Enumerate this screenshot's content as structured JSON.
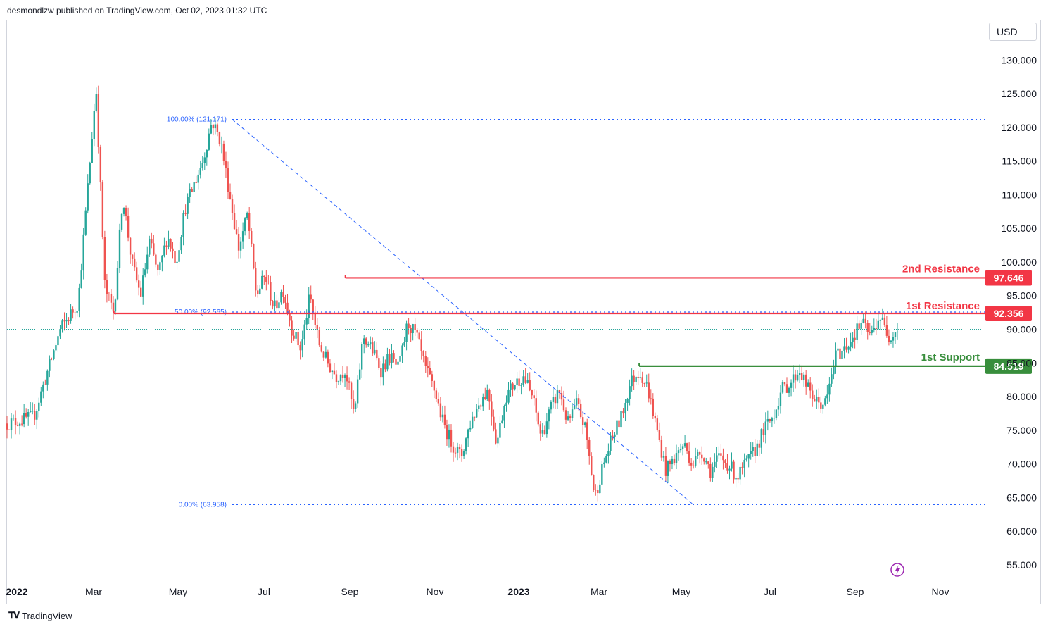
{
  "header": {
    "publisher": "desmondlzw published on TradingView.com, Oct 02, 2023 01:32 UTC",
    "currency": "USD"
  },
  "footer": {
    "logo_text": "TradingView"
  },
  "colors": {
    "up": "#26a69a",
    "down": "#ef5350",
    "resistance": "#f23645",
    "support": "#388e3c",
    "fib": "#2962ff"
  },
  "chart_data": {
    "type": "candlestick",
    "title": "",
    "ylim": [
      50,
      136
    ],
    "y_ticks": [
      "130.000",
      "125.000",
      "120.000",
      "115.000",
      "110.000",
      "105.000",
      "100.000",
      "95.000",
      "90.000",
      "85.000",
      "80.000",
      "75.000",
      "70.000",
      "65.000",
      "60.000",
      "55.000"
    ],
    "x_ticks": [
      "2022",
      "Mar",
      "May",
      "Jul",
      "Sep",
      "Nov",
      "2023",
      "Mar",
      "May",
      "Jul",
      "Sep",
      "Nov"
    ],
    "last_price": 90.0,
    "price_path": [
      {
        "t": 0,
        "p": 76
      },
      {
        "t": 3,
        "p": 77
      },
      {
        "t": 6,
        "p": 90
      },
      {
        "t": 8,
        "p": 94
      },
      {
        "t": 9,
        "p": 110
      },
      {
        "t": 10,
        "p": 126
      },
      {
        "t": 11,
        "p": 96
      },
      {
        "t": 12,
        "p": 92.5
      },
      {
        "t": 13,
        "p": 110
      },
      {
        "t": 14,
        "p": 100
      },
      {
        "t": 15,
        "p": 95
      },
      {
        "t": 16,
        "p": 103
      },
      {
        "t": 17,
        "p": 98
      },
      {
        "t": 18,
        "p": 104
      },
      {
        "t": 19,
        "p": 100
      },
      {
        "t": 20,
        "p": 108
      },
      {
        "t": 22,
        "p": 115
      },
      {
        "t": 23,
        "p": 121
      },
      {
        "t": 24,
        "p": 118
      },
      {
        "t": 25,
        "p": 110
      },
      {
        "t": 26,
        "p": 102
      },
      {
        "t": 27,
        "p": 107
      },
      {
        "t": 28,
        "p": 95
      },
      {
        "t": 29,
        "p": 98
      },
      {
        "t": 30,
        "p": 93
      },
      {
        "t": 31,
        "p": 96
      },
      {
        "t": 32,
        "p": 90
      },
      {
        "t": 33,
        "p": 87
      },
      {
        "t": 34,
        "p": 95
      },
      {
        "t": 35,
        "p": 88
      },
      {
        "t": 36,
        "p": 85
      },
      {
        "t": 37,
        "p": 83
      },
      {
        "t": 38,
        "p": 84
      },
      {
        "t": 39,
        "p": 77
      },
      {
        "t": 40,
        "p": 89
      },
      {
        "t": 41,
        "p": 87
      },
      {
        "t": 42,
        "p": 84
      },
      {
        "t": 43,
        "p": 86
      },
      {
        "t": 44,
        "p": 84
      },
      {
        "t": 45,
        "p": 91
      },
      {
        "t": 46,
        "p": 89
      },
      {
        "t": 47,
        "p": 84
      },
      {
        "t": 48,
        "p": 81
      },
      {
        "t": 49,
        "p": 76
      },
      {
        "t": 50,
        "p": 73
      },
      {
        "t": 51,
        "p": 71
      },
      {
        "t": 52,
        "p": 76
      },
      {
        "t": 53,
        "p": 79
      },
      {
        "t": 54,
        "p": 81
      },
      {
        "t": 55,
        "p": 73
      },
      {
        "t": 56,
        "p": 80
      },
      {
        "t": 57,
        "p": 82
      },
      {
        "t": 58,
        "p": 83
      },
      {
        "t": 59,
        "p": 80
      },
      {
        "t": 60,
        "p": 74
      },
      {
        "t": 61,
        "p": 78
      },
      {
        "t": 62,
        "p": 81
      },
      {
        "t": 63,
        "p": 76
      },
      {
        "t": 64,
        "p": 79
      },
      {
        "t": 65,
        "p": 75
      },
      {
        "t": 66,
        "p": 65
      },
      {
        "t": 67,
        "p": 70
      },
      {
        "t": 68,
        "p": 74
      },
      {
        "t": 69,
        "p": 77
      },
      {
        "t": 70,
        "p": 82
      },
      {
        "t": 71,
        "p": 84
      },
      {
        "t": 72,
        "p": 81
      },
      {
        "t": 73,
        "p": 75
      },
      {
        "t": 74,
        "p": 69
      },
      {
        "t": 75,
        "p": 71
      },
      {
        "t": 76,
        "p": 73
      },
      {
        "t": 77,
        "p": 70
      },
      {
        "t": 78,
        "p": 72
      },
      {
        "t": 79,
        "p": 69
      },
      {
        "t": 80,
        "p": 71
      },
      {
        "t": 81,
        "p": 70
      },
      {
        "t": 82,
        "p": 68
      },
      {
        "t": 83,
        "p": 70
      },
      {
        "t": 84,
        "p": 72
      },
      {
        "t": 85,
        "p": 75
      },
      {
        "t": 86,
        "p": 77
      },
      {
        "t": 87,
        "p": 81
      },
      {
        "t": 88,
        "p": 82
      },
      {
        "t": 89,
        "p": 84
      },
      {
        "t": 90,
        "p": 81
      },
      {
        "t": 91,
        "p": 79
      },
      {
        "t": 92,
        "p": 79
      },
      {
        "t": 93,
        "p": 86
      },
      {
        "t": 94,
        "p": 87
      },
      {
        "t": 95,
        "p": 89
      },
      {
        "t": 96,
        "p": 91
      },
      {
        "t": 97,
        "p": 89
      },
      {
        "t": 98,
        "p": 92
      },
      {
        "t": 99,
        "p": 89
      },
      {
        "t": 100,
        "p": 90
      }
    ],
    "levels": [
      {
        "name": "2nd Resistance",
        "value": 97.646,
        "value_label": "97.646",
        "kind": "resistance",
        "t_start": 38
      },
      {
        "name": "1st Resistance",
        "value": 92.356,
        "value_label": "92.356",
        "kind": "resistance",
        "t_start": 12
      },
      {
        "name": "1st Support",
        "value": 84.519,
        "value_label": "84.519",
        "kind": "support",
        "t_start": 71
      }
    ],
    "fibonacci": [
      {
        "label": "100.00% (121.171)",
        "value": 121.171
      },
      {
        "label": "50.00% (92.565)",
        "value": 92.565
      },
      {
        "label": "0.00% (63.958)",
        "value": 63.958
      }
    ]
  }
}
